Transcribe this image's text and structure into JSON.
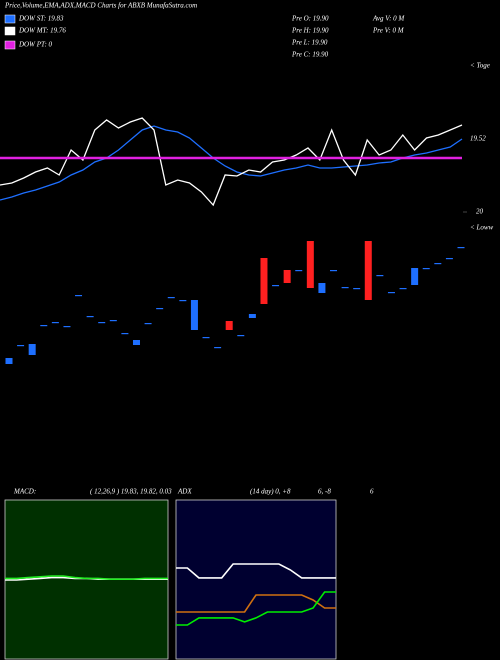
{
  "chart_data": [
    {
      "type": "line",
      "title": "Price,Volume,EMA,ADX,MACD Charts for ABXB MunafaSutra.com",
      "info": [
        "Pre  O: 19.90",
        "Pre  H: 19.90",
        "Pre  L: 19.90",
        "Pre  C: 19.90",
        "Avg  V: 0  M",
        "Pre  V: 0  M"
      ],
      "annotations": [
        "< Toge"
      ],
      "background": "#000000",
      "ylim": [
        18.81,
        20.71
      ],
      "series": [
        {
          "name": "DOW ST: 19.83",
          "color": "#1e6fff",
          "values": [
            18.91,
            18.94,
            18.98,
            19.01,
            19.05,
            19.09,
            19.16,
            19.21,
            19.29,
            19.33,
            19.41,
            19.51,
            19.61,
            19.65,
            19.61,
            19.59,
            19.53,
            19.43,
            19.33,
            19.25,
            19.19,
            19.16,
            19.15,
            19.18,
            19.21,
            19.23,
            19.26,
            19.23,
            19.23,
            19.24,
            19.25,
            19.26,
            19.28,
            19.29,
            19.33,
            19.36,
            19.38,
            19.41,
            19.44,
            19.52
          ]
        },
        {
          "name": "DOW MT: 19.76",
          "color": "#ffffff",
          "values": [
            19.06,
            19.08,
            19.13,
            19.19,
            19.23,
            19.16,
            19.41,
            19.31,
            19.61,
            19.71,
            19.63,
            19.69,
            19.73,
            19.61,
            19.06,
            19.11,
            19.08,
            18.99,
            18.86,
            19.16,
            19.15,
            19.21,
            19.19,
            19.29,
            19.31,
            19.36,
            19.43,
            19.31,
            19.61,
            19.31,
            19.16,
            19.51,
            19.36,
            19.41,
            19.56,
            19.41,
            19.53,
            19.56,
            19.61,
            19.66
          ]
        },
        {
          "name": "DOW PT: 0",
          "color": "#e020e0",
          "values": [
            19.33,
            19.33,
            19.33,
            19.33,
            19.33,
            19.33,
            19.33,
            19.33,
            19.33,
            19.33,
            19.33,
            19.33,
            19.33,
            19.33,
            19.33,
            19.33,
            19.33,
            19.33,
            19.33,
            19.33,
            19.33,
            19.33,
            19.33,
            19.33,
            19.33,
            19.33,
            19.33,
            19.33,
            19.33,
            19.33,
            19.33,
            19.33,
            19.33,
            19.33,
            19.33,
            19.33,
            19.33,
            19.33,
            19.33,
            19.33
          ]
        }
      ]
    },
    {
      "type": "candlestick",
      "annotations": [
        "< Loww"
      ],
      "background": "#000000",
      "up_color": "#1e6fff",
      "down_color": "#ff2020",
      "ylim": [
        18.4,
        20
      ],
      "yticks": [
        20
      ],
      "categories": [
        null,
        null,
        null,
        null,
        null,
        null,
        null,
        null,
        null,
        null,
        null,
        null,
        null,
        null,
        null,
        null,
        null,
        null,
        null,
        null,
        null,
        null,
        null,
        null,
        null,
        null,
        null,
        null,
        null,
        null,
        null,
        null,
        null,
        null,
        null,
        null,
        null,
        null,
        null,
        null
      ],
      "open": [
        18.48,
        18.67,
        18.57,
        18.87,
        18.9,
        18.86,
        19.17,
        18.96,
        18.9,
        18.92,
        18.79,
        18.67,
        18.89,
        19.04,
        19.15,
        19.12,
        18.82,
        18.75,
        18.65,
        18.91,
        18.77,
        18.94,
        19.54,
        19.27,
        19.42,
        19.42,
        19.71,
        19.19,
        19.42,
        19.25,
        19.24,
        19.71,
        19.37,
        19.2,
        19.24,
        19.27,
        19.44,
        19.49,
        19.54,
        19.65
      ],
      "close": [
        18.54,
        18.67,
        18.68,
        18.87,
        18.9,
        18.86,
        19.17,
        18.96,
        18.9,
        18.92,
        18.79,
        18.72,
        18.89,
        19.04,
        19.15,
        19.12,
        19.12,
        18.75,
        18.65,
        18.82,
        18.77,
        18.98,
        19.08,
        19.27,
        19.29,
        19.42,
        19.24,
        19.29,
        19.42,
        19.25,
        19.24,
        19.12,
        19.37,
        19.2,
        19.24,
        19.44,
        19.44,
        19.49,
        19.54,
        19.65
      ]
    },
    {
      "type": "line",
      "title": "MACD:",
      "subtitle": "( 12,26,9 ) 19.83, 19.82, 0.03",
      "background": "#003000",
      "border": "#cccccc",
      "ylim": [
        -1,
        1
      ],
      "series": [
        {
          "color": "#ffffff",
          "values": [
            0.0,
            0.0,
            0.01,
            0.02,
            0.03,
            0.03,
            0.02,
            0.02,
            0.01,
            0.01,
            0.01,
            0.01,
            0.01,
            0.01,
            0.01
          ]
        },
        {
          "color": "#22ee22",
          "values": [
            0.02,
            0.02,
            0.03,
            0.04,
            0.05,
            0.05,
            0.03,
            0.02,
            0.02,
            0.01,
            0.01,
            0.01,
            0.02,
            0.02,
            0.02
          ]
        }
      ]
    },
    {
      "type": "line",
      "title": "ADX",
      "subtitle": "(14 day) 0, +8",
      "annotations": [
        "6, -8",
        "6"
      ],
      "background": "#000030",
      "border": "#cccccc",
      "ylim": [
        0,
        100
      ],
      "series": [
        {
          "color": "#ffffff",
          "values": [
            57.5,
            57.5,
            51.3,
            51.3,
            51.3,
            60,
            60,
            60,
            60,
            60,
            56.3,
            51.3,
            51.3,
            51.3,
            51.3
          ]
        },
        {
          "color": "#d07010",
          "values": [
            30,
            30,
            30,
            30,
            30,
            30,
            30,
            40.6,
            40.6,
            40.6,
            40.6,
            40.6,
            37.5,
            32.5,
            32.5
          ]
        },
        {
          "color": "#00ee00",
          "values": [
            21.9,
            21.9,
            26.3,
            26.3,
            26.3,
            26.3,
            23.8,
            26.3,
            30,
            30,
            30,
            30,
            32.5,
            42.5,
            42.5
          ]
        }
      ]
    }
  ]
}
